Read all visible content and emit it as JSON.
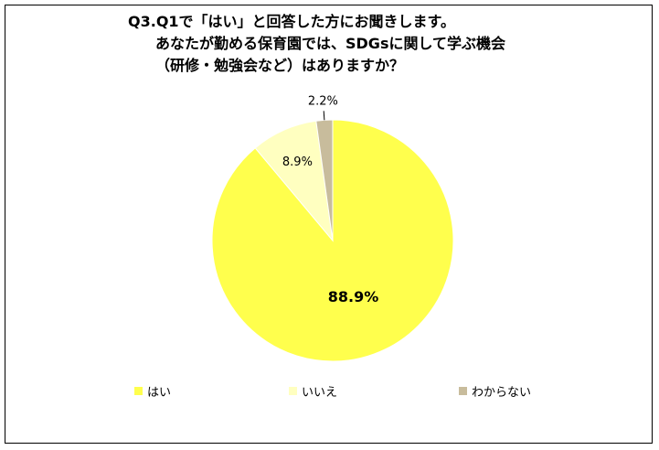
{
  "chart_data": {
    "type": "pie",
    "title_lines": [
      "Q3.Q1で「はい」と回答した方にお聞きします。",
      "あなたが勤める保育園では、SDGsに関して学ぶ機会",
      "（研修・勉強会など）はありますか？"
    ],
    "slices": [
      {
        "label": "はい",
        "value": 88.9,
        "value_label": "88.9%",
        "color": "#FFFF4D"
      },
      {
        "label": "いいえ",
        "value": 8.9,
        "value_label": "8.9%",
        "color": "#FFFFC0"
      },
      {
        "label": "わからない",
        "value": 2.2,
        "value_label": "2.2%",
        "color": "#C8BC9C"
      }
    ],
    "start": "12 o'clock",
    "direction": "clockwise",
    "legend_position": "bottom"
  }
}
